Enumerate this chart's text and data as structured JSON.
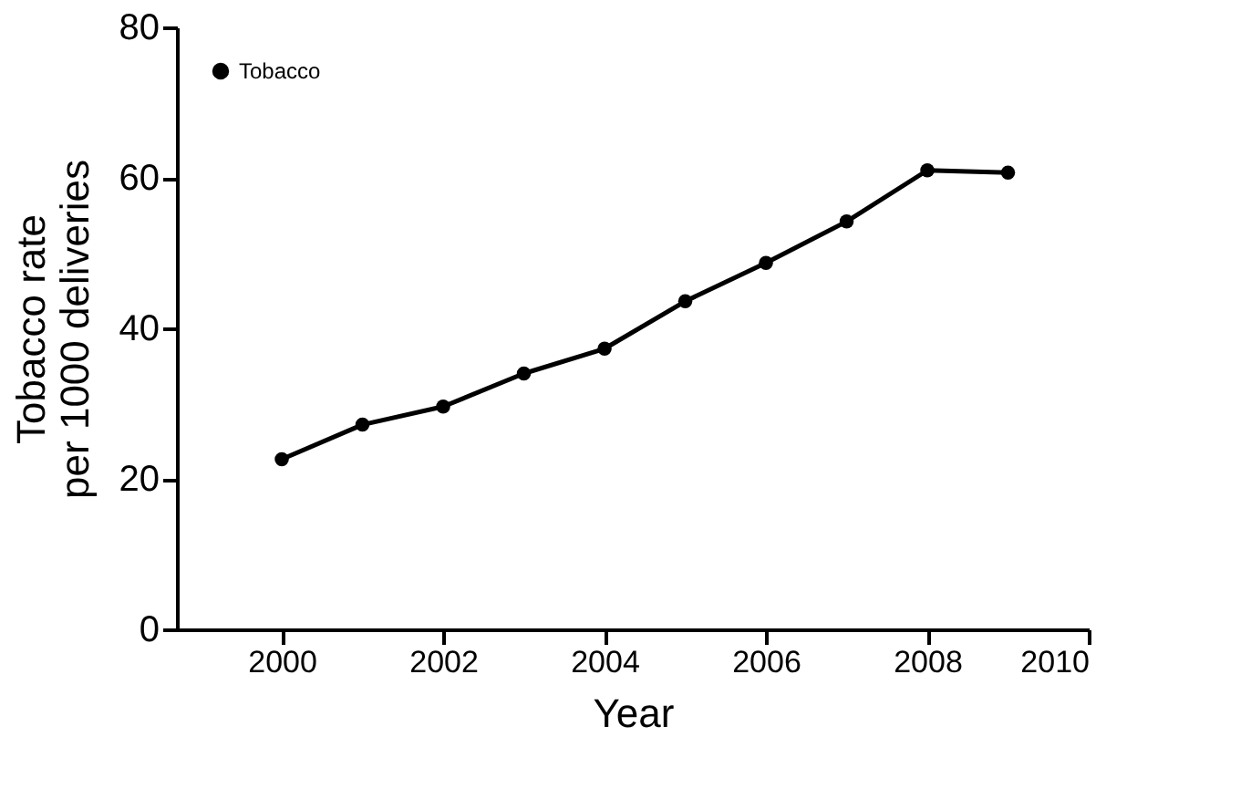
{
  "chart_data": {
    "type": "line",
    "xlabel": "Year",
    "ylabel": "Tobacco rate\nper 1000 deliveries",
    "x": [
      2000,
      2001,
      2002,
      2003,
      2004,
      2005,
      2006,
      2007,
      2008,
      2009
    ],
    "series": [
      {
        "name": "Tobacco",
        "color": "#000000",
        "values": [
          22.6,
          27.2,
          29.6,
          34.0,
          37.3,
          43.6,
          48.7,
          54.2,
          61.0,
          60.7
        ]
      }
    ],
    "xlim": [
      1998.7,
      2010
    ],
    "xticks": [
      2000,
      2002,
      2004,
      2006,
      2008,
      2010
    ],
    "ylim": [
      0,
      80
    ],
    "yticks": [
      0,
      20,
      40,
      60,
      80
    ],
    "grid": false,
    "legend": "top left",
    "marker": "circle",
    "line_style": "solid"
  }
}
